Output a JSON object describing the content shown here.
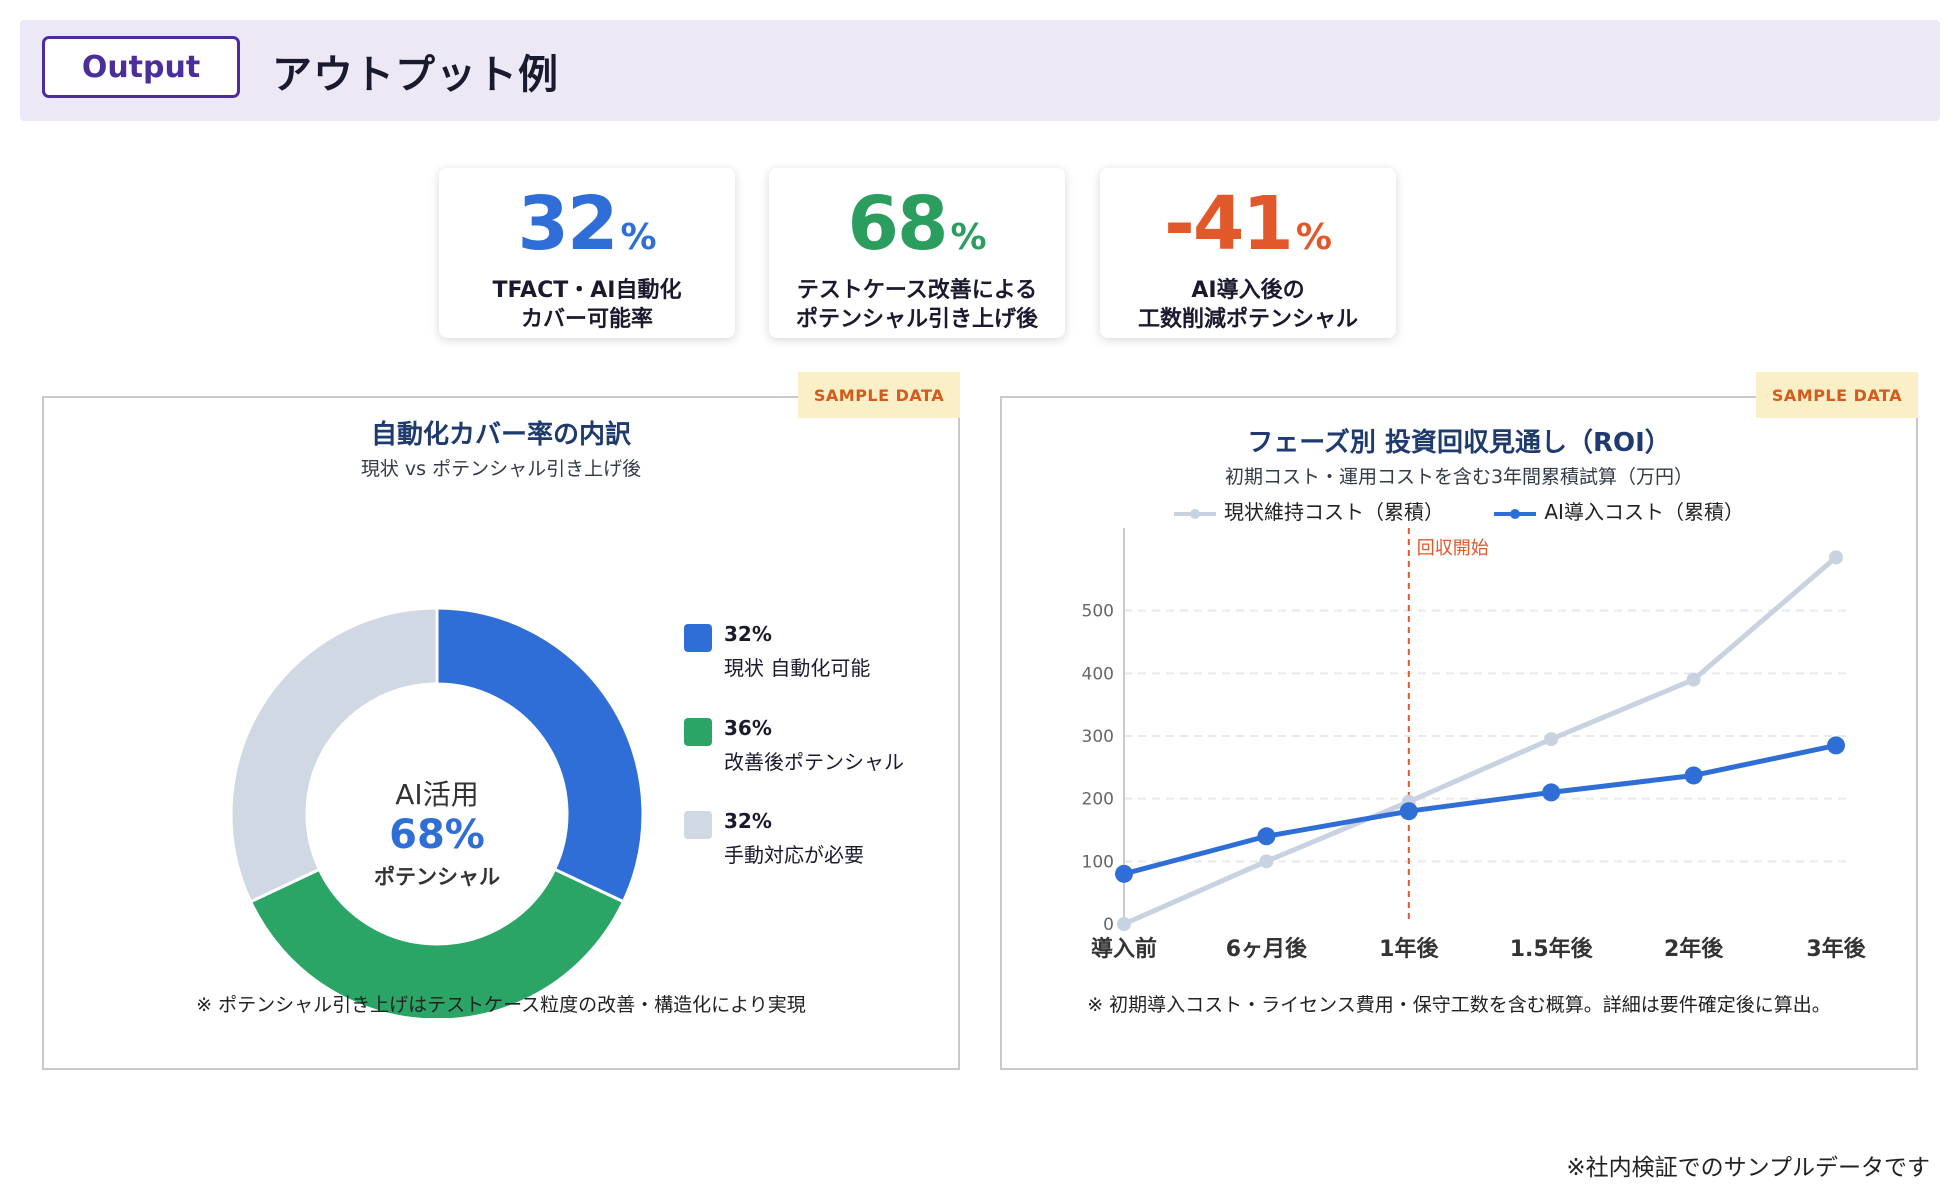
{
  "header": {
    "badge": "Output",
    "title": "アウトプット例"
  },
  "kpis": [
    {
      "value": "32",
      "unit": "%",
      "color": "#2f6ed6",
      "label_line1": "TFACT・AI自動化",
      "label_line2": "カバー可能率"
    },
    {
      "value": "68",
      "unit": "%",
      "color": "#2a9d5f",
      "label_line1": "テストケース改善による",
      "label_line2": "ポテンシャル引き上げ後"
    },
    {
      "value": "-41",
      "unit": "%",
      "color": "#e1582a",
      "label_line1": "AI導入後の",
      "label_line2": "工数削減ポテンシャル"
    }
  ],
  "sample_tag": "SAMPLE DATA",
  "donut_panel": {
    "title": "自動化カバー率の内訳",
    "subtitle": "現状 vs ポテンシャル引き上げ後",
    "center_line1": "AI活用",
    "center_line2": "68%",
    "center_line3": "ポテンシャル",
    "note": "※ ポテンシャル引き上げはテストケース粒度の改善・構造化により実現",
    "legend": [
      {
        "pct": "32%",
        "label": "現状 自動化可能",
        "color": "#2f6ed6"
      },
      {
        "pct": "36%",
        "label": "改善後ポテンシャル",
        "color": "#2aa566"
      },
      {
        "pct": "32%",
        "label": "手動対応が必要",
        "color": "#d0d8e4"
      }
    ]
  },
  "line_panel": {
    "title": "フェーズ別 投資回収見通し（ROI）",
    "subtitle": "初期コスト・運用コストを含む3年間累積試算（万円）",
    "note": "※ 初期導入コスト・ライセンス費用・保守工数を含む概算。詳細は要件確定後に算出。",
    "payback_label": "回収開始"
  },
  "chart_data": [
    {
      "type": "pie",
      "categories": [
        "現状 自動化可能",
        "改善後ポテンシャル",
        "手動対応が必要"
      ],
      "values": [
        32,
        36,
        32
      ],
      "colors": [
        "#2f6ed6",
        "#2aa566",
        "#d0d8e4"
      ],
      "title": "自動化カバー率の内訳",
      "subtitle": "現状 vs ポテンシャル引き上げ後",
      "legend": "right"
    },
    {
      "type": "line",
      "title": "フェーズ別 投資回収見通し（ROI）",
      "subtitle": "初期コスト・運用コストを含む3年間累積試算（万円）",
      "categories": [
        "導入前",
        "6ヶ月後",
        "1年後",
        "1.5年後",
        "2年後",
        "3年後"
      ],
      "series": [
        {
          "name": "現状維持コスト（累積）",
          "values": [
            0,
            100,
            195,
            295,
            390,
            585
          ],
          "color": "#c8d2e0"
        },
        {
          "name": "AI導入コスト（累積）",
          "values": [
            80,
            140,
            180,
            210,
            237,
            285
          ],
          "color": "#2f6ed6"
        }
      ],
      "ylim": [
        0,
        600
      ],
      "yticks": [
        0,
        100,
        200,
        300,
        400,
        500
      ],
      "grid": true,
      "legend": "top",
      "annotation": {
        "at": "1年後",
        "label": "回収開始",
        "color": "#e1582a"
      }
    }
  ],
  "footer_note": "※社内検証でのサンプルデータです"
}
